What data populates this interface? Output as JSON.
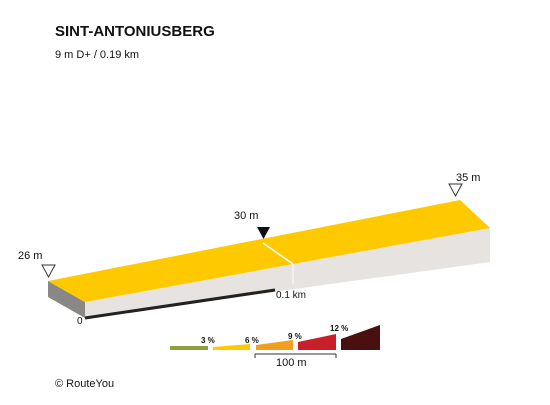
{
  "header": {
    "title": "SINT-ANTONIUSBERG",
    "subtitle": "9 m D+ / 0.19 km"
  },
  "profile": {
    "start_elevation": "26 m",
    "mid_elevation": "30 m",
    "end_elevation": "35 m",
    "start_distance": "0",
    "mid_distance": "0.1 km"
  },
  "legend": {
    "grades": [
      "3 %",
      "6 %",
      "9 %",
      "12 %"
    ],
    "scale": "100 m"
  },
  "footer": "© RouteYou"
}
